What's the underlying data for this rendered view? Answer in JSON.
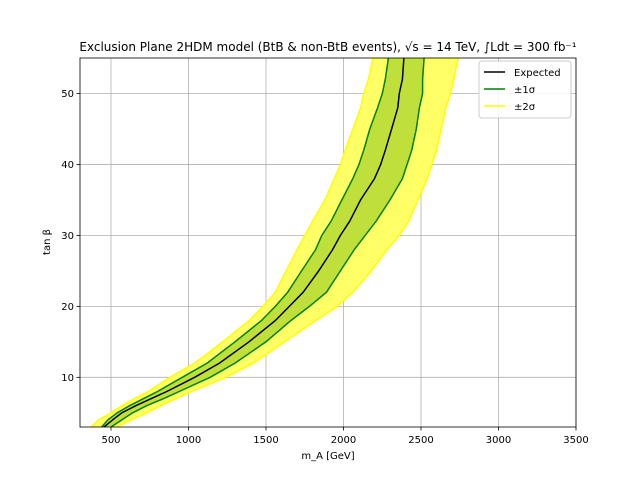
{
  "chart_data": {
    "type": "area",
    "title": "Exclusion Plane 2HDM model (BtB & non-BtB events), √s = 14 TeV, ∫Ldt = 300 fb⁻¹",
    "xlabel": "m_A [GeV]",
    "ylabel": "tan β",
    "xlim": [
      300,
      3500
    ],
    "ylim": [
      3,
      55
    ],
    "xticks": [
      500,
      1000,
      1500,
      2000,
      2500,
      3000,
      3500
    ],
    "yticks": [
      10,
      20,
      30,
      40,
      50
    ],
    "grid": true,
    "legend_position": "top-right",
    "legend": [
      {
        "label": "Expected",
        "color": "#000000"
      },
      {
        "label": "±1σ",
        "color": "#008000"
      },
      {
        "label": "±2σ",
        "color": "#ffff00"
      }
    ],
    "colors": {
      "expected": "#000000",
      "sigma1_line": "#008000",
      "sigma1_fill": "#bfe03a",
      "sigma2_fill": "#ffff66",
      "sigma2_line": "#ffff00",
      "grid": "#b0b0b0"
    },
    "y": [
      3,
      4,
      5,
      6,
      7,
      8,
      10,
      12,
      15,
      18,
      20,
      22,
      25,
      28,
      30,
      32,
      35,
      38,
      40,
      42,
      45,
      48,
      50,
      52,
      55
    ],
    "series": [
      {
        "name": "Expected",
        "x": [
          455,
          510,
          570,
          660,
          760,
          860,
          1040,
          1200,
          1390,
          1560,
          1650,
          1740,
          1840,
          1930,
          1980,
          2040,
          2110,
          2200,
          2240,
          2270,
          2310,
          2350,
          2360,
          2380,
          2390
        ]
      },
      {
        "name": "-2σ",
        "x": [
          370,
          420,
          500,
          570,
          650,
          740,
          880,
          1040,
          1220,
          1390,
          1480,
          1560,
          1630,
          1700,
          1750,
          1800,
          1880,
          1940,
          1980,
          2010,
          2060,
          2110,
          2130,
          2160,
          2190
        ]
      },
      {
        "name": "-1σ",
        "x": [
          440,
          480,
          540,
          620,
          710,
          800,
          960,
          1120,
          1300,
          1470,
          1560,
          1640,
          1730,
          1820,
          1860,
          1920,
          1990,
          2060,
          2100,
          2130,
          2170,
          2220,
          2250,
          2270,
          2290
        ]
      },
      {
        "name": "+1σ",
        "x": [
          500,
          570,
          640,
          730,
          840,
          940,
          1140,
          1300,
          1500,
          1660,
          1780,
          1890,
          1980,
          2070,
          2140,
          2210,
          2300,
          2380,
          2410,
          2440,
          2470,
          2490,
          2510,
          2510,
          2520
        ]
      },
      {
        "name": "+2σ",
        "x": [
          540,
          630,
          730,
          820,
          920,
          1020,
          1240,
          1420,
          1620,
          1820,
          1960,
          2060,
          2180,
          2280,
          2360,
          2420,
          2480,
          2540,
          2570,
          2600,
          2630,
          2660,
          2690,
          2710,
          2740
        ]
      }
    ]
  }
}
